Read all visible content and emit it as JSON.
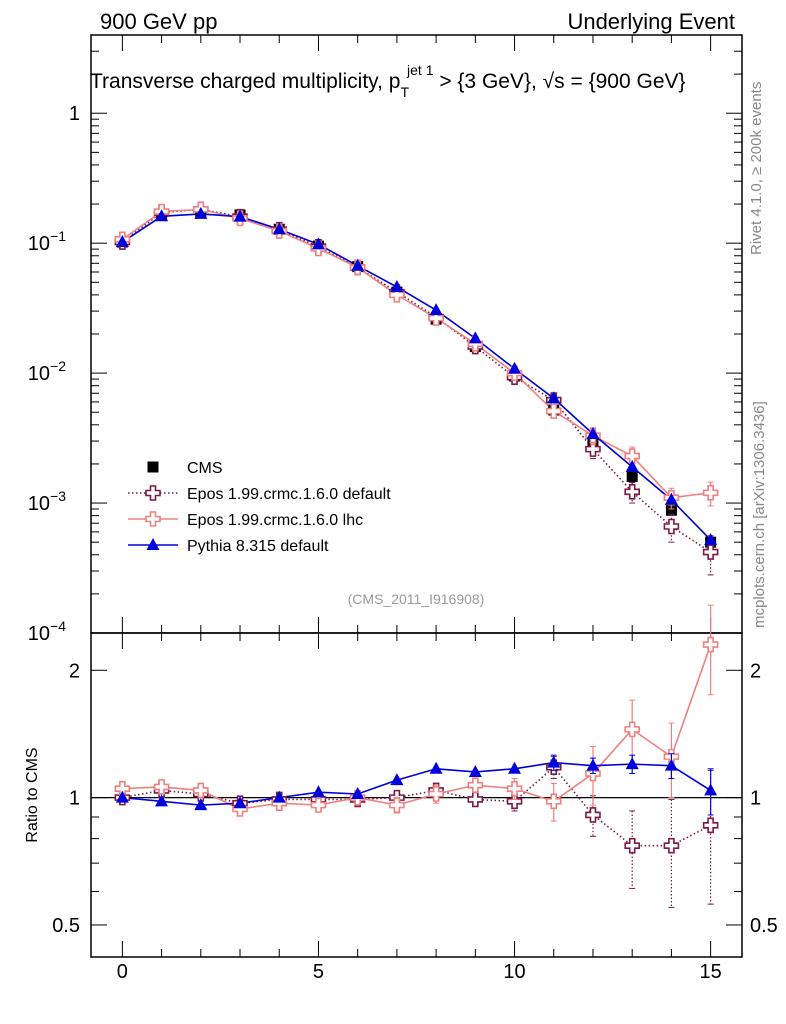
{
  "header": {
    "left": "900 GeV pp",
    "right": "Underlying Event"
  },
  "title": {
    "main": "Transverse charged multiplicity, p",
    "sub": "T",
    "sup": "jet 1",
    "rest": " > {3 GeV}, √s = {900 GeV}"
  },
  "side_labels": {
    "rivet": "Rivet 4.1.0, ≥ 200k events",
    "mcplots": "mcplots.cern.ch [arXiv:1306.3436]"
  },
  "analysis_id": "(CMS_2011_I916908)",
  "chart_data": [
    {
      "type": "scatter",
      "panel": "main",
      "yscale": "log",
      "xlim": [
        -0.8,
        15.8
      ],
      "ylim": [
        0.0001,
        4
      ],
      "yticks": [
        {
          "value": 1,
          "label": "1"
        },
        {
          "value": 0.1,
          "base": "10",
          "exp": "−1"
        },
        {
          "value": 0.01,
          "base": "10",
          "exp": "−2"
        },
        {
          "value": 0.001,
          "base": "10",
          "exp": "−3"
        },
        {
          "value": 0.0001,
          "base": "10",
          "exp": "−4"
        }
      ],
      "x": [
        0,
        1,
        2,
        3,
        4,
        5,
        6,
        7,
        8,
        9,
        10,
        11,
        12,
        13,
        14,
        15
      ],
      "series": [
        {
          "name": "CMS",
          "color": "#000000",
          "marker": "square",
          "line": "none",
          "values": [
            0.102,
            0.165,
            0.175,
            0.165,
            0.128,
            0.095,
            0.066,
            0.042,
            0.026,
            0.016,
            0.0095,
            0.0052,
            0.0029,
            0.0016,
            0.00088,
            0.0005
          ]
        },
        {
          "name": "Epos 1.99.crmc.1.6.0 default",
          "color": "#7a1a44",
          "marker": "open-cross",
          "line": "dotted",
          "values": [
            0.102,
            0.172,
            0.182,
            0.16,
            0.127,
            0.094,
            0.065,
            0.042,
            0.027,
            0.016,
            0.0093,
            0.0062,
            0.0026,
            0.00122,
            0.00066,
            0.00042
          ],
          "errors": [
            0,
            0,
            0,
            0,
            0,
            0,
            0,
            0,
            0,
            0,
            0,
            0.0006,
            0.0004,
            0.00022,
            0.00016,
            0.00014
          ]
        },
        {
          "name": "Epos 1.99.crmc.1.6.0 lhc",
          "color": "#f08080",
          "marker": "open-cross",
          "line": "solid",
          "values": [
            0.107,
            0.175,
            0.182,
            0.155,
            0.124,
            0.091,
            0.065,
            0.04,
            0.0265,
            0.0168,
            0.01,
            0.0051,
            0.0033,
            0.0023,
            0.0011,
            0.0012
          ],
          "errors": [
            0,
            0,
            0,
            0,
            0,
            0,
            0,
            0,
            0,
            0,
            0,
            0.0005,
            0.0005,
            0.0004,
            0.0002,
            0.00025
          ]
        },
        {
          "name": "Pythia 8.315 default",
          "color": "#0000dd",
          "marker": "triangle",
          "line": "solid",
          "values": [
            0.102,
            0.161,
            0.168,
            0.16,
            0.128,
            0.098,
            0.067,
            0.046,
            0.0305,
            0.0185,
            0.0108,
            0.0064,
            0.0034,
            0.0019,
            0.00106,
            0.00052
          ]
        }
      ],
      "legend": {
        "placement": "lower-left"
      }
    },
    {
      "type": "scatter",
      "panel": "ratio",
      "ylabel": "Ratio to CMS",
      "yscale": "log",
      "xlim": [
        -0.8,
        15.8
      ],
      "ylim": [
        0.42,
        2.45
      ],
      "yticks": [
        {
          "value": 2,
          "label": "2"
        },
        {
          "value": 1,
          "label": "1"
        },
        {
          "value": 0.5,
          "label": "0.5"
        }
      ],
      "xticks": [
        {
          "value": 0,
          "label": "0"
        },
        {
          "value": 5,
          "label": "5"
        },
        {
          "value": 10,
          "label": "10"
        },
        {
          "value": 15,
          "label": "15"
        }
      ],
      "x": [
        0,
        1,
        2,
        3,
        4,
        5,
        6,
        7,
        8,
        9,
        10,
        11,
        12,
        13,
        14,
        15
      ],
      "series": [
        {
          "name": "Epos 1.99.crmc.1.6.0 default",
          "color": "#7a1a44",
          "marker": "open-cross",
          "line": "dotted",
          "values": [
            1.0,
            1.04,
            1.02,
            0.97,
            0.99,
            0.99,
            0.99,
            1.0,
            1.04,
            0.99,
            0.98,
            1.18,
            0.91,
            0.77,
            0.77,
            0.86
          ],
          "errors": [
            0,
            0,
            0,
            0,
            0,
            0,
            0,
            0,
            0,
            0,
            0.05,
            0.07,
            0.1,
            0.16,
            0.22,
            0.3
          ]
        },
        {
          "name": "Epos 1.99.crmc.1.6.0 lhc",
          "color": "#f08080",
          "marker": "open-cross",
          "line": "solid",
          "values": [
            1.05,
            1.06,
            1.04,
            0.94,
            0.97,
            0.96,
            1.0,
            0.96,
            1.02,
            1.07,
            1.05,
            0.98,
            1.14,
            1.45,
            1.25,
            2.3
          ],
          "errors": [
            0,
            0,
            0,
            0,
            0,
            0,
            0,
            0.04,
            0.05,
            0.04,
            0.06,
            0.1,
            0.18,
            0.25,
            0.25,
            0.55
          ]
        },
        {
          "name": "Pythia 8.315 default",
          "color": "#0000dd",
          "marker": "triangle",
          "line": "solid",
          "values": [
            1.0,
            0.98,
            0.96,
            0.97,
            1.0,
            1.03,
            1.02,
            1.1,
            1.17,
            1.15,
            1.17,
            1.21,
            1.19,
            1.2,
            1.19,
            1.04
          ],
          "errors": [
            0,
            0,
            0,
            0,
            0,
            0,
            0,
            0,
            0,
            0,
            0,
            0.05,
            0.05,
            0.06,
            0.08,
            0.13
          ]
        }
      ],
      "reference_line": 1
    }
  ]
}
